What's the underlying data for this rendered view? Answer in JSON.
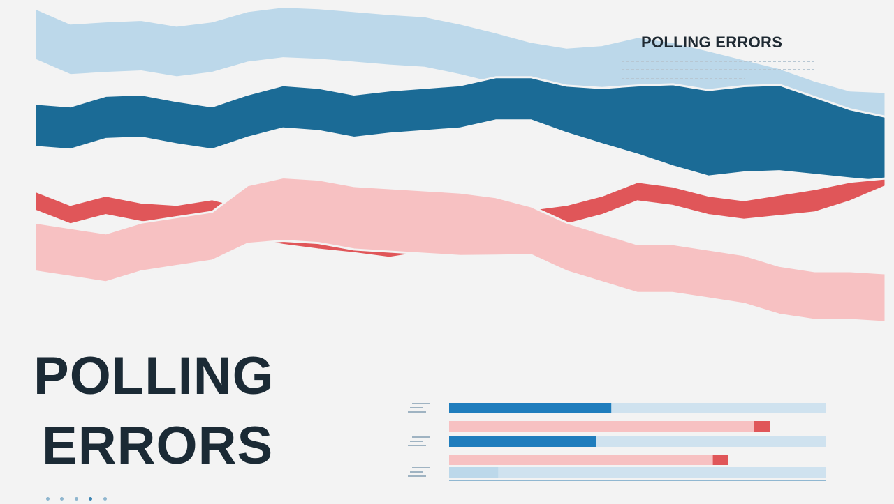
{
  "header": {
    "title": "POLLING ERRORS"
  },
  "hero": {
    "line1": "POLLING",
    "line2": "ERRORS"
  },
  "colors": {
    "background": "#f3f3f3",
    "light_blue": "#bcd8ea",
    "dark_blue": "#1b6b96",
    "red": "#e05659",
    "pink": "#f7c1c2",
    "bar_blue": "#1f7dbd",
    "bar_track": "#cfe2ef"
  },
  "chart_data": [
    {
      "type": "area",
      "title": "",
      "x": [
        0,
        1,
        2,
        3,
        4,
        5,
        6,
        7,
        8,
        9,
        10,
        11,
        12,
        13,
        14,
        15,
        16,
        17,
        18,
        19,
        20,
        21,
        22,
        23,
        24
      ],
      "series": [
        {
          "values": [
            -66,
            -45,
            -48,
            -50,
            -42,
            -48,
            -62,
            -68,
            -66,
            -62,
            -58,
            -55,
            -45,
            -33,
            -20,
            -5,
            2,
            5,
            12,
            20,
            25,
            30,
            40,
            50,
            52
          ]
        },
        {
          "values": [
            -18,
            -16,
            -24,
            -25,
            -20,
            -16,
            -25,
            -32,
            -30,
            -25,
            -28,
            -30,
            -32,
            -38,
            -38,
            -30,
            -25,
            -22,
            -18,
            -12,
            -15,
            -16,
            -10,
            -4,
            0
          ]
        },
        {
          "values": [
            10,
            16,
            12,
            15,
            16,
            14,
            20,
            22,
            24,
            26,
            28,
            26,
            25,
            22,
            18,
            16,
            12,
            6,
            8,
            12,
            14,
            12,
            10,
            6,
            2
          ]
        },
        {
          "values": [
            35,
            40,
            45,
            35,
            30,
            25,
            5,
            0,
            2,
            8,
            10,
            12,
            14,
            16,
            20,
            35,
            45,
            55,
            55,
            60,
            65,
            75,
            80,
            80,
            82
          ]
        }
      ]
    },
    {
      "type": "bar",
      "title": "",
      "groups": [
        {
          "values": [
            43,
            85
          ]
        },
        {
          "values": [
            39,
            74
          ]
        },
        {
          "values": [
            13
          ]
        }
      ]
    }
  ]
}
